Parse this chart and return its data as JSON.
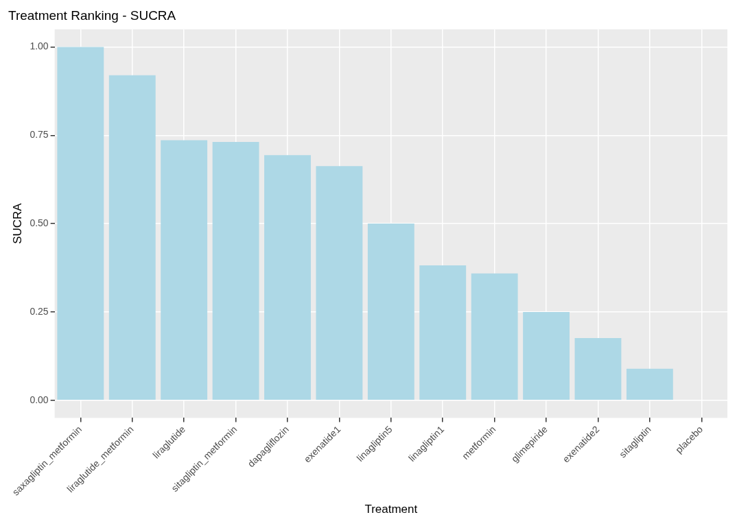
{
  "chart_data": {
    "type": "bar",
    "title": "Treatment Ranking - SUCRA",
    "xlabel": "Treatment",
    "ylabel": "SUCRA",
    "categories": [
      "saxagliptin_metformin",
      "liraglutide_metformin",
      "liraglutide",
      "sitagliptin_metformin",
      "dapagliflozin",
      "exenatide1",
      "linagliptin5",
      "linagliptin1",
      "metformin",
      "glimepiride",
      "exenatide2",
      "sitagliptin",
      "placebo"
    ],
    "values": [
      1.0,
      0.92,
      0.736,
      0.731,
      0.694,
      0.663,
      0.5,
      0.382,
      0.359,
      0.25,
      0.176,
      0.089,
      0
    ],
    "color": "#add8e6",
    "ylim": [
      -0.05,
      1.05
    ],
    "yticks": [
      {
        "value": 0,
        "label": "0.00"
      },
      {
        "value": 0.25,
        "label": "0.25"
      },
      {
        "value": 0.5,
        "label": "0.50"
      },
      {
        "value": 0.75,
        "label": "0.75"
      },
      {
        "value": 1,
        "label": "1.00"
      }
    ],
    "grid": true,
    "legend": false
  }
}
